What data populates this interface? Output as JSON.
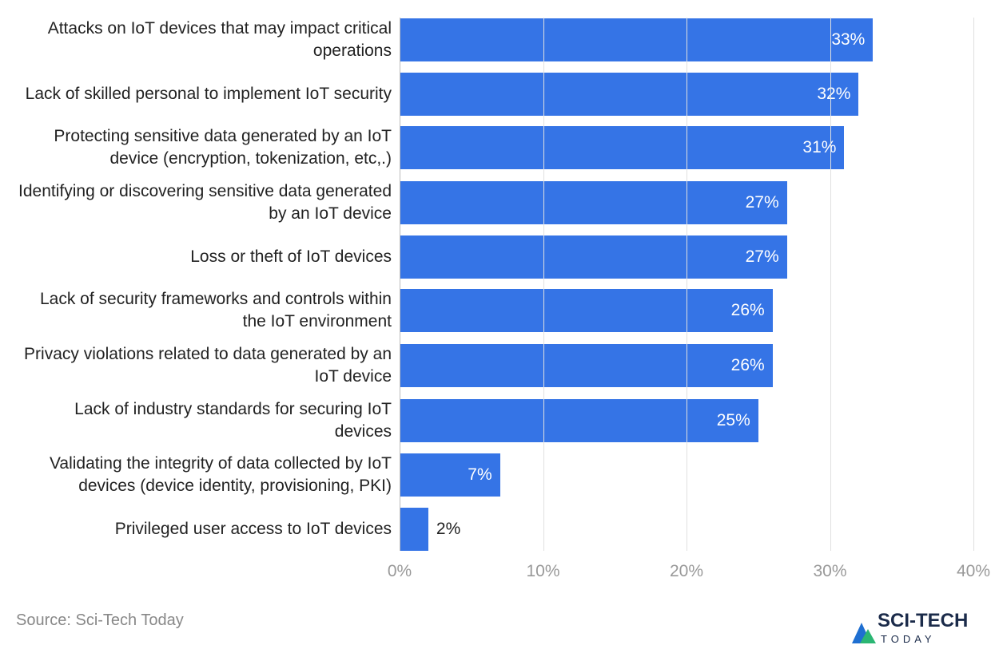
{
  "chart_data": {
    "type": "bar",
    "orientation": "horizontal",
    "categories": [
      "Attacks on IoT devices that may impact critical operations",
      "Lack of skilled personal to implement IoT security",
      "Protecting sensitive data generated by an IoT device (encryption, tokenization, etc,.)",
      "Identifying or discovering sensitive data generated by an IoT device",
      "Loss or theft of IoT devices",
      "Lack of security frameworks and controls within the IoT environment",
      "Privacy violations related to data generated by an IoT device",
      "Lack of industry standards for securing IoT devices",
      "Validating the integrity of data collected by IoT devices (device identity, provisioning, PKI)",
      "Privileged user access to IoT devices"
    ],
    "values": [
      33,
      32,
      31,
      27,
      27,
      26,
      26,
      25,
      7,
      2
    ],
    "value_labels": [
      "33%",
      "32%",
      "31%",
      "27%",
      "27%",
      "26%",
      "26%",
      "25%",
      "7%",
      "2%"
    ],
    "color": "#3574e6",
    "xlim": [
      0,
      40
    ],
    "xticks": [
      {
        "value": 0,
        "label": "0%"
      },
      {
        "value": 10,
        "label": "10%"
      },
      {
        "value": 20,
        "label": "20%"
      },
      {
        "value": 30,
        "label": "30%"
      },
      {
        "value": 40,
        "label": "40%"
      }
    ],
    "grid": true
  },
  "source": "Source: Sci-Tech Today",
  "logo": {
    "title": "SCI-TECH",
    "subtitle": "TODAY"
  }
}
